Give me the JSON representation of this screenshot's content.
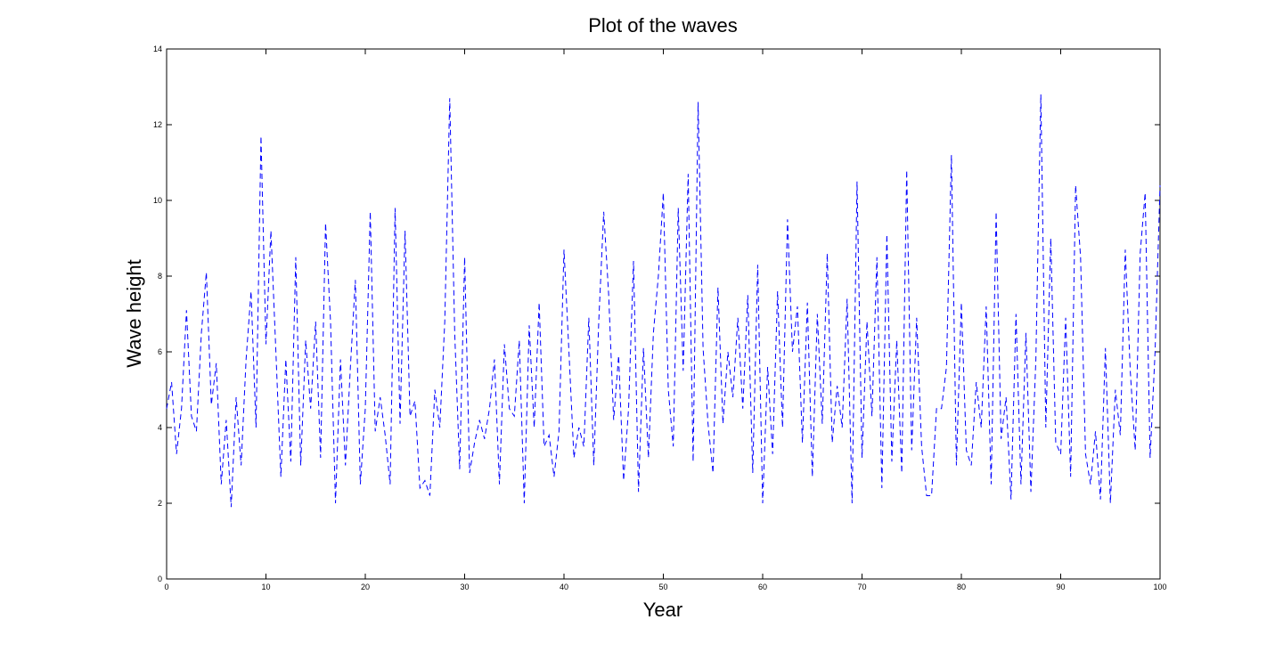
{
  "chart_data": {
    "type": "line",
    "title": "Plot of the waves",
    "x_label": "Year",
    "y_label": "Wave height",
    "xlim": [
      0,
      100
    ],
    "ylim": [
      0,
      14
    ],
    "xticks": [
      0,
      10,
      20,
      30,
      40,
      50,
      60,
      70,
      80,
      90,
      100
    ],
    "yticks": [
      0,
      2,
      4,
      6,
      8,
      10,
      12,
      14
    ],
    "grid": false,
    "line_style": "dashed",
    "x": [
      0,
      0.5,
      1,
      1.5,
      2,
      2.5,
      3,
      3.5,
      4,
      4.5,
      5,
      5.5,
      6,
      6.5,
      7,
      7.5,
      8,
      8.5,
      9,
      9.5,
      10,
      10.5,
      11,
      11.5,
      12,
      12.5,
      13,
      13.5,
      14,
      14.5,
      15,
      15.5,
      16,
      16.5,
      17,
      17.5,
      18,
      18.5,
      19,
      19.5,
      20,
      20.5,
      21,
      21.5,
      22,
      22.5,
      23,
      23.5,
      24,
      24.5,
      25,
      25.5,
      26,
      26.5,
      27,
      27.5,
      28,
      28.5,
      29,
      29.5,
      30,
      30.5,
      31,
      31.5,
      32,
      32.5,
      33,
      33.5,
      34,
      34.5,
      35,
      35.5,
      36,
      36.5,
      37,
      37.5,
      38,
      38.5,
      39,
      39.5,
      40,
      40.5,
      41,
      41.5,
      42,
      42.5,
      43,
      43.5,
      44,
      44.5,
      45,
      45.5,
      46,
      46.5,
      47,
      47.5,
      48,
      48.5,
      49,
      49.5,
      50,
      50.5,
      51,
      51.5,
      52,
      52.5,
      53,
      53.5,
      54,
      54.5,
      55,
      55.5,
      56,
      56.5,
      57,
      57.5,
      58,
      58.5,
      59,
      59.5,
      60,
      60.5,
      61,
      61.5,
      62,
      62.5,
      63,
      63.5,
      64,
      64.5,
      65,
      65.5,
      66,
      66.5,
      67,
      67.5,
      68,
      68.5,
      69,
      69.5,
      70,
      70.5,
      71,
      71.5,
      72,
      72.5,
      73,
      73.5,
      74,
      74.5,
      75,
      75.5,
      76,
      76.5,
      77,
      77.5,
      78,
      78.5,
      79,
      79.5,
      80,
      80.5,
      81,
      81.5,
      82,
      82.5,
      83,
      83.5,
      84,
      84.5,
      85,
      85.5,
      86,
      86.5,
      87,
      87.5,
      88,
      88.5,
      89,
      89.5,
      90,
      90.5,
      91,
      91.5,
      92,
      92.5,
      93,
      93.5,
      94,
      94.5,
      95,
      95.5,
      96,
      96.5,
      97,
      97.5,
      98,
      98.5,
      99,
      99.5,
      100
    ],
    "series": [
      {
        "color": "#0000ff",
        "values": [
          4.5,
          5.2,
          3.3,
          4.5,
          7.1,
          4.3,
          3.9,
          6.5,
          8.1,
          4.6,
          5.7,
          2.5,
          4.2,
          1.9,
          4.8,
          3.0,
          5.8,
          7.6,
          4.0,
          11.7,
          6.2,
          9.2,
          6.0,
          2.7,
          5.8,
          3.1,
          8.5,
          3.0,
          6.3,
          4.5,
          6.8,
          3.2,
          9.4,
          6.8,
          2.0,
          5.8,
          3.0,
          5.6,
          7.9,
          2.5,
          4.5,
          9.7,
          3.9,
          4.8,
          3.8,
          2.5,
          9.8,
          4.1,
          9.2,
          4.3,
          4.7,
          2.4,
          2.6,
          2.2,
          5.0,
          4.0,
          6.8,
          12.7,
          6.5,
          2.9,
          8.5,
          2.8,
          3.6,
          4.2,
          3.7,
          4.5,
          5.8,
          2.5,
          6.2,
          4.5,
          4.3,
          6.3,
          2.0,
          6.7,
          4.0,
          7.3,
          3.5,
          3.8,
          2.7,
          3.9,
          8.7,
          6.0,
          3.2,
          4.0,
          3.5,
          6.9,
          3.0,
          6.8,
          9.7,
          7.5,
          4.2,
          5.9,
          2.6,
          4.5,
          8.4,
          2.3,
          6.1,
          3.2,
          6.5,
          8.0,
          10.2,
          5.0,
          3.5,
          9.8,
          5.5,
          10.7,
          3.1,
          12.6,
          6.1,
          4.1,
          2.8,
          7.7,
          4.1,
          6.0,
          4.8,
          6.9,
          4.5,
          7.5,
          2.8,
          8.3,
          2.0,
          5.6,
          3.3,
          7.6,
          4.0,
          9.5,
          6.0,
          7.2,
          3.6,
          7.3,
          2.7,
          7.0,
          4.1,
          8.6,
          3.6,
          5.1,
          4.0,
          7.4,
          2.0,
          10.5,
          3.2,
          6.8,
          4.3,
          8.5,
          2.4,
          9.1,
          3.1,
          6.3,
          2.8,
          10.8,
          3.4,
          6.9,
          3.5,
          2.2,
          2.2,
          4.5,
          4.5,
          5.6,
          11.2,
          3.0,
          7.3,
          3.4,
          3.0,
          5.2,
          4.0,
          7.2,
          2.5,
          9.7,
          3.7,
          4.8,
          2.1,
          7.0,
          2.5,
          6.5,
          2.3,
          5.8,
          12.8,
          4.0,
          9.0,
          3.6,
          3.3,
          6.9,
          2.7,
          10.4,
          8.5,
          3.3,
          2.5,
          3.9,
          2.1,
          6.1,
          2.0,
          5.0,
          3.8,
          8.7,
          5.5,
          3.4,
          8.6,
          10.2,
          3.2,
          6.0,
          10.4
        ]
      }
    ]
  }
}
